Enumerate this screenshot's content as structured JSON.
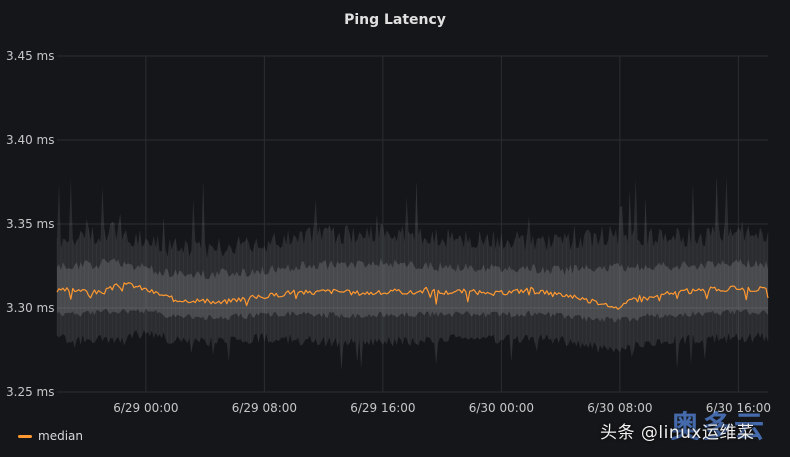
{
  "panel": {
    "title": "Ping Latency",
    "watermark": "头条 @linux运维菜",
    "logo_text": "奥多云"
  },
  "colors": {
    "background": "#141619",
    "grid": "#2b2e33",
    "band": "#b4b6ba",
    "median": "#ff9830",
    "tick_text": "#c7c7c7"
  },
  "chart_data": {
    "type": "line",
    "title": "Ping Latency",
    "xlabel": "",
    "ylabel": "",
    "y_unit": "ms",
    "ylim": [
      3.25,
      3.45
    ],
    "y_ticks": [
      "3.45 ms",
      "3.40 ms",
      "3.35 ms",
      "3.30 ms",
      "3.25 ms"
    ],
    "y_tick_values": [
      3.45,
      3.4,
      3.35,
      3.3,
      3.25
    ],
    "xlim": [
      "6/28 18:00",
      "6/30 18:00"
    ],
    "x_ticks": [
      "6/29 00:00",
      "6/29 08:00",
      "6/29 16:00",
      "6/30 00:00",
      "6/30 08:00",
      "6/30 16:00"
    ],
    "x_tick_hours": [
      6,
      14,
      22,
      30,
      38,
      46
    ],
    "x_range_hours": [
      0,
      48
    ],
    "grid": true,
    "legend_position": "bottom-left",
    "series": [
      {
        "name": "median",
        "color": "#ff9830",
        "x_hours": [
          0,
          1,
          2,
          3,
          4,
          5,
          6,
          7,
          8,
          9,
          10,
          11,
          12,
          13,
          14,
          15,
          16,
          17,
          18,
          19,
          20,
          21,
          22,
          23,
          24,
          25,
          26,
          27,
          28,
          29,
          30,
          31,
          32,
          33,
          34,
          35,
          36,
          37,
          38,
          39,
          40,
          41,
          42,
          43,
          44,
          45,
          46,
          47,
          48
        ],
        "values": [
          3.31,
          3.311,
          3.31,
          3.309,
          3.313,
          3.314,
          3.311,
          3.308,
          3.305,
          3.305,
          3.304,
          3.303,
          3.305,
          3.306,
          3.307,
          3.308,
          3.31,
          3.309,
          3.31,
          3.31,
          3.309,
          3.309,
          3.309,
          3.31,
          3.309,
          3.311,
          3.309,
          3.31,
          3.31,
          3.308,
          3.309,
          3.31,
          3.311,
          3.309,
          3.308,
          3.307,
          3.304,
          3.303,
          3.3,
          3.306,
          3.306,
          3.308,
          3.31,
          3.31,
          3.311,
          3.311,
          3.312,
          3.311,
          3.312
        ]
      },
      {
        "name": "",
        "kind": "distribution band",
        "x_hours": [
          0,
          2,
          4,
          6,
          8,
          10,
          12,
          14,
          16,
          18,
          20,
          22,
          24,
          26,
          28,
          30,
          32,
          34,
          36,
          38,
          40,
          42,
          44,
          46,
          48
        ],
        "p_low": [
          3.285,
          3.284,
          3.285,
          3.288,
          3.284,
          3.283,
          3.284,
          3.285,
          3.284,
          3.283,
          3.282,
          3.283,
          3.283,
          3.284,
          3.285,
          3.284,
          3.285,
          3.284,
          3.28,
          3.278,
          3.282,
          3.284,
          3.285,
          3.285,
          3.286
        ],
        "p_high": [
          3.335,
          3.337,
          3.34,
          3.333,
          3.33,
          3.33,
          3.331,
          3.332,
          3.336,
          3.338,
          3.338,
          3.34,
          3.337,
          3.336,
          3.334,
          3.335,
          3.334,
          3.333,
          3.336,
          3.338,
          3.337,
          3.336,
          3.337,
          3.338,
          3.336
        ]
      }
    ]
  }
}
